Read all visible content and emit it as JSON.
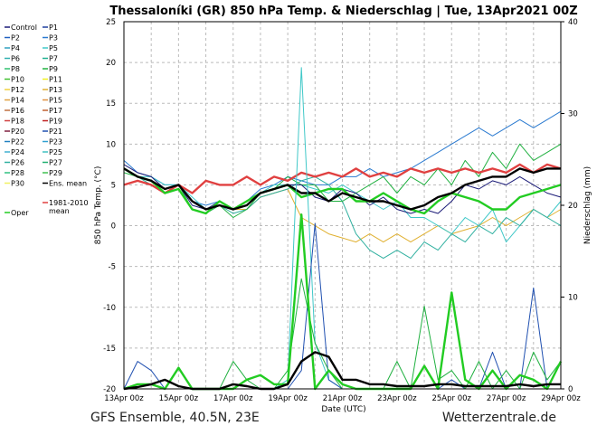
{
  "chart_data": {
    "type": "line",
    "title": "Thessaloníki  (GR)  850 hPa Temp. & Niederschlag | Tue, 13Apr2021 00Z",
    "xlabel": "Date (UTC)",
    "ylabel": "850 hPa Temp. (°C)",
    "ylabel_right": "Niederschlag (mm)",
    "ylim": [
      -20,
      25
    ],
    "ylim_right": [
      0,
      40
    ],
    "yticks": [
      -20,
      -15,
      -10,
      -5,
      0,
      5,
      10,
      15,
      20,
      25
    ],
    "yticks_right": [
      0,
      10,
      20,
      30,
      40
    ],
    "xticks": [
      "13Apr 00z",
      "15Apr 00z",
      "17Apr 00z",
      "19Apr 00z",
      "21Apr 00z",
      "23Apr 00z",
      "25Apr 00z",
      "27Apr 00z",
      "29Apr 00z"
    ],
    "grid": true,
    "legend_placement": "left-outside",
    "times": [
      "2021-04-13 00Z",
      "2021-04-13 12Z",
      "2021-04-14 00Z",
      "2021-04-14 12Z",
      "2021-04-15 00Z",
      "2021-04-15 12Z",
      "2021-04-16 00Z",
      "2021-04-16 12Z",
      "2021-04-17 00Z",
      "2021-04-17 12Z",
      "2021-04-18 00Z",
      "2021-04-18 12Z",
      "2021-04-19 00Z",
      "2021-04-19 12Z",
      "2021-04-20 00Z",
      "2021-04-20 12Z",
      "2021-04-21 00Z",
      "2021-04-21 12Z",
      "2021-04-22 00Z",
      "2021-04-22 12Z",
      "2021-04-23 00Z",
      "2021-04-23 12Z",
      "2021-04-24 00Z",
      "2021-04-24 12Z",
      "2021-04-25 00Z",
      "2021-04-25 12Z",
      "2021-04-26 00Z",
      "2021-04-26 12Z",
      "2021-04-27 00Z",
      "2021-04-27 12Z",
      "2021-04-28 00Z",
      "2021-04-28 12Z",
      "2021-04-29 00Z"
    ],
    "legend": [
      {
        "name": "Control",
        "color": "#1c1c78"
      },
      {
        "name": "P1",
        "color": "#1f3f9f"
      },
      {
        "name": "P2",
        "color": "#2060c0"
      },
      {
        "name": "P3",
        "color": "#2a7ad0"
      },
      {
        "name": "P4",
        "color": "#30a0c0"
      },
      {
        "name": "P5",
        "color": "#40c8c8"
      },
      {
        "name": "P6",
        "color": "#30b0b0"
      },
      {
        "name": "P7",
        "color": "#20b090"
      },
      {
        "name": "P8",
        "color": "#30c070"
      },
      {
        "name": "P9",
        "color": "#20b040"
      },
      {
        "name": "P10",
        "color": "#40c030"
      },
      {
        "name": "P11",
        "color": "#f0f020"
      },
      {
        "name": "P12",
        "color": "#f0d040"
      },
      {
        "name": "P13",
        "color": "#e0b030"
      },
      {
        "name": "P14",
        "color": "#e0a040"
      },
      {
        "name": "P15",
        "color": "#e09040"
      },
      {
        "name": "P16",
        "color": "#c07040"
      },
      {
        "name": "P17",
        "color": "#c06030"
      },
      {
        "name": "P18",
        "color": "#d04040"
      },
      {
        "name": "P19",
        "color": "#c02020"
      },
      {
        "name": "P20",
        "color": "#802040"
      },
      {
        "name": "P21",
        "color": "#2050b0"
      },
      {
        "name": "P22",
        "color": "#2080c0"
      },
      {
        "name": "P23",
        "color": "#30a0d0"
      },
      {
        "name": "P24",
        "color": "#40b0d0"
      },
      {
        "name": "P25",
        "color": "#40c0c0"
      },
      {
        "name": "P26",
        "color": "#30b0a0"
      },
      {
        "name": "P27",
        "color": "#20b070"
      },
      {
        "name": "P28",
        "color": "#30c080"
      },
      {
        "name": "P29",
        "color": "#40c050"
      },
      {
        "name": "P30",
        "color": "#f0f060"
      },
      {
        "name": "Ens. mean",
        "color": "#000000"
      },
      {
        "name": "Oper",
        "color": "#22cc22"
      },
      {
        "name": "1981-2010 mean",
        "color": "#e04040"
      }
    ],
    "temperature_series": [
      {
        "name": "P3",
        "values": [
          8,
          6.5,
          6,
          5,
          5,
          3,
          2.5,
          3,
          2,
          3,
          4.5,
          5,
          6,
          5.5,
          5,
          5,
          6,
          6,
          7,
          6,
          6.5,
          7,
          8,
          9,
          10,
          11,
          12,
          11,
          12,
          13,
          12,
          13,
          14
        ]
      },
      {
        "name": "P13",
        "values": [
          7,
          6,
          5.5,
          4.5,
          5,
          3,
          2,
          2.5,
          2,
          2,
          3.5,
          4,
          4.5,
          1,
          0,
          -1,
          -1.5,
          -2,
          -1,
          -2,
          -1,
          -2,
          -1,
          0,
          -1,
          -0.5,
          0,
          1,
          0,
          1,
          2,
          1,
          2
        ]
      },
      {
        "name": "P5",
        "values": [
          7,
          6,
          6,
          5,
          5,
          3.5,
          2,
          2.5,
          2,
          3,
          4,
          5,
          5,
          5,
          4.5,
          4,
          5,
          4,
          3,
          2,
          3,
          1,
          1,
          0,
          -1,
          1,
          0,
          2,
          -2,
          0,
          2,
          1,
          3
        ]
      },
      {
        "name": "P26",
        "values": [
          7,
          6,
          5,
          4,
          4.5,
          2,
          1.5,
          2.5,
          1.5,
          2,
          3.5,
          4,
          4.5,
          5.5,
          6,
          5,
          3,
          -1,
          -3,
          -4,
          -3,
          -4,
          -2,
          -3,
          -1,
          -2,
          0,
          -1,
          1,
          0,
          2,
          1,
          0
        ]
      },
      {
        "name": "P9",
        "values": [
          6.5,
          6,
          5.5,
          4,
          5,
          2,
          1.5,
          2.5,
          1,
          2,
          4,
          4.5,
          6,
          5,
          5,
          3,
          3,
          4,
          5,
          6,
          4,
          6,
          5,
          7,
          5,
          8,
          6,
          9,
          7,
          10,
          8,
          9,
          10
        ]
      },
      {
        "name": "Control",
        "values": [
          7.5,
          6.5,
          6,
          4.5,
          5,
          2.5,
          2,
          3,
          2,
          2.5,
          4,
          4.5,
          5,
          5,
          3.5,
          3,
          4.5,
          4,
          2.5,
          3.5,
          2,
          1.5,
          2,
          1.5,
          3,
          5,
          4.5,
          5.5,
          5,
          6,
          5,
          4,
          3.5
        ]
      },
      {
        "name": "1981-2010 mean",
        "values": [
          5,
          5.5,
          5,
          4,
          5,
          4,
          5.5,
          5,
          5,
          6,
          5,
          6,
          5.5,
          6.5,
          6,
          6.5,
          6,
          7,
          6,
          6.5,
          6,
          7,
          6.5,
          7,
          6.5,
          7,
          6.5,
          7,
          6.5,
          7.5,
          6.5,
          7.5,
          7
        ]
      },
      {
        "name": "Oper",
        "values": [
          7,
          6,
          5.5,
          4,
          4.5,
          2,
          1.5,
          3,
          2,
          3,
          4,
          4.5,
          5,
          3.5,
          4,
          4.5,
          4.5,
          3,
          3,
          4,
          3,
          2,
          1.5,
          3,
          4,
          3.5,
          3,
          2,
          2,
          3.5,
          4,
          4.5,
          5
        ]
      },
      {
        "name": "Ens. mean",
        "values": [
          7,
          6,
          5.5,
          4.5,
          5,
          3,
          2,
          2.5,
          2,
          2.5,
          4,
          4.5,
          5,
          4,
          4,
          3,
          4,
          3.5,
          3,
          3,
          2.5,
          2,
          2.5,
          3.5,
          4,
          5,
          5.5,
          6,
          6,
          7,
          6.5,
          7,
          7
        ]
      }
    ],
    "precipitation_series": [
      {
        "name": "P5",
        "values": [
          0,
          0,
          0,
          0,
          0,
          0,
          0,
          0,
          0,
          0,
          0,
          0,
          1,
          35,
          5,
          1,
          0,
          0,
          0,
          0,
          0,
          0,
          0,
          0,
          0,
          0,
          0,
          0,
          0,
          0,
          0,
          0,
          0
        ]
      },
      {
        "name": "P21",
        "values": [
          0,
          3,
          2,
          0,
          0,
          0,
          0,
          0,
          0,
          0,
          0,
          0,
          0,
          2,
          18,
          1,
          0,
          0,
          0,
          0,
          0,
          0,
          0,
          0,
          1,
          0,
          0,
          4,
          0,
          0,
          11,
          0,
          0
        ]
      },
      {
        "name": "P9",
        "values": [
          0,
          0,
          0,
          0,
          0,
          0,
          0,
          0,
          3,
          1,
          0,
          0,
          2,
          12,
          5,
          2,
          0,
          0,
          0,
          0,
          3,
          0,
          9,
          1,
          2,
          0,
          3,
          0,
          2,
          0,
          4,
          1,
          3
        ]
      },
      {
        "name": "Oper",
        "values": [
          0,
          0.5,
          0.5,
          0,
          2.3,
          0,
          0,
          0,
          0,
          1,
          1.5,
          0.5,
          0.5,
          19,
          0,
          2,
          0.5,
          0,
          0,
          0,
          0,
          0,
          2.5,
          0,
          10.5,
          1,
          0,
          2,
          0,
          1.5,
          1,
          0,
          3
        ]
      },
      {
        "name": "Ens. mean",
        "values": [
          0,
          0.2,
          0.5,
          1,
          0.3,
          0,
          0,
          0,
          0.5,
          0.3,
          0,
          0,
          0.5,
          3,
          4,
          3.5,
          1,
          1,
          0.5,
          0.5,
          0.3,
          0.3,
          0.3,
          0.5,
          0.5,
          0.3,
          0.3,
          0.3,
          0.3,
          0.5,
          0.3,
          0.5,
          0.5
        ]
      }
    ]
  },
  "footer": {
    "left": "GFS Ensemble, 40.5N, 23E",
    "right": "Wetterzentrale.de"
  }
}
